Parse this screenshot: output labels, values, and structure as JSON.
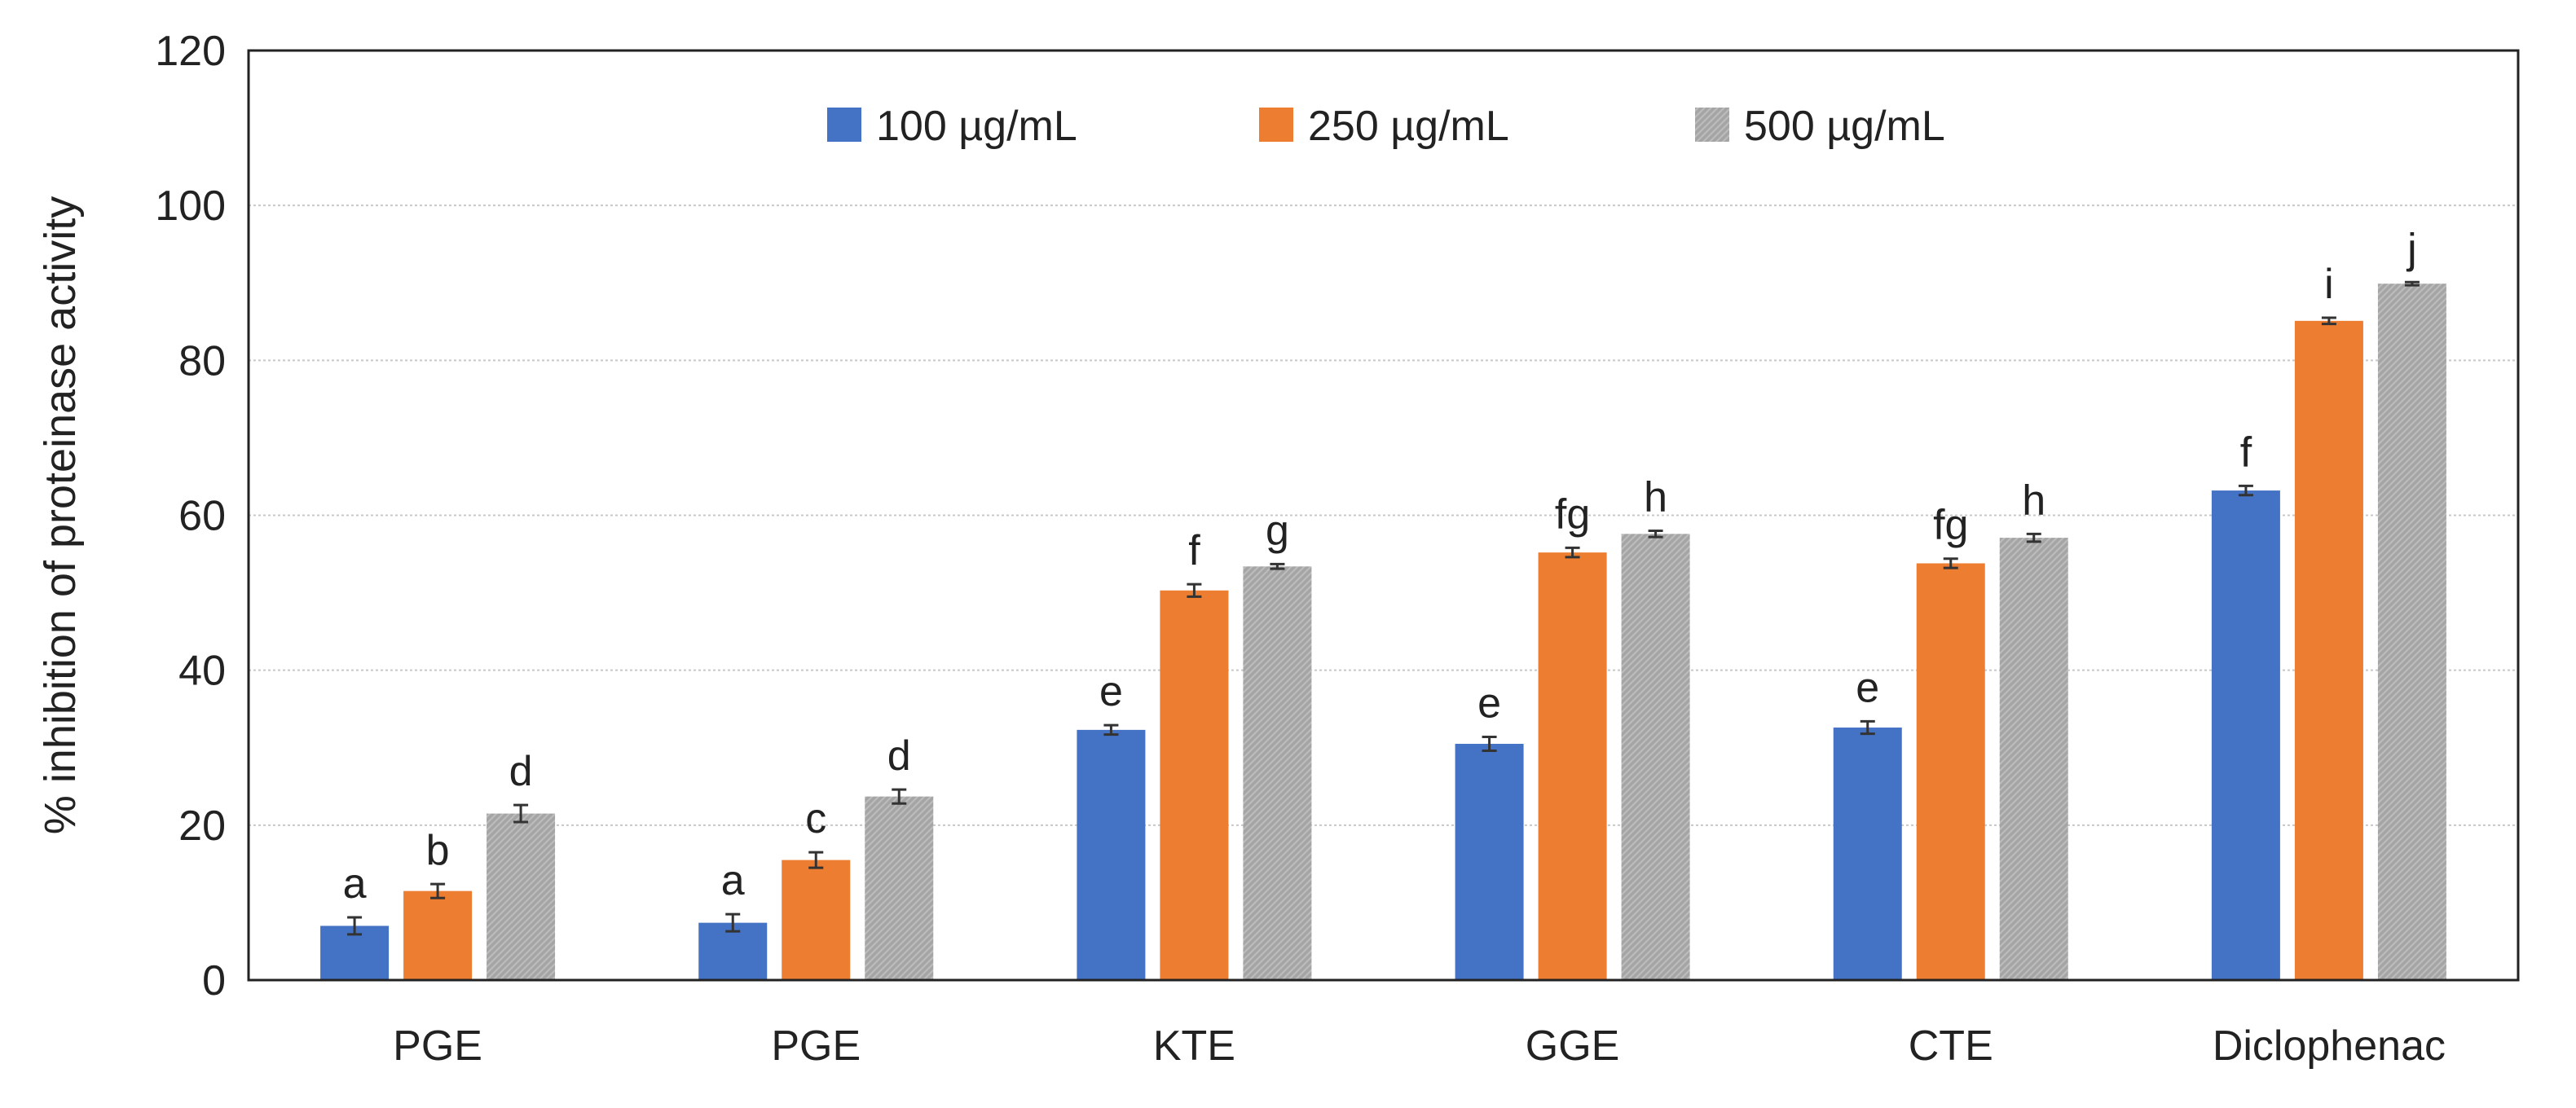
{
  "chart_data": {
    "type": "bar",
    "title": "",
    "xlabel": "",
    "ylabel": "% inhibition of proteinase activity",
    "ylim": [
      0,
      120
    ],
    "yticks": [
      0,
      20,
      40,
      60,
      80,
      100,
      120
    ],
    "grid": true,
    "legend_position": "top-center",
    "categories": [
      "PGE",
      "PGE",
      "KTE",
      "GGE",
      "CTE",
      "Diclophenac"
    ],
    "series": [
      {
        "name": "100 µg/mL",
        "color": "#4472C4",
        "values": [
          7,
          7.4,
          32.3,
          30.5,
          32.6,
          63.2
        ],
        "errors": [
          1.1,
          1.1,
          0.6,
          0.9,
          0.8,
          0.6
        ],
        "letters": [
          "a",
          "a",
          "e",
          "e",
          "e",
          "f"
        ]
      },
      {
        "name": "250 µg/mL",
        "color": "#ED7D31",
        "values": [
          11.5,
          15.5,
          50.3,
          55.2,
          53.8,
          85.1
        ],
        "errors": [
          0.9,
          1.0,
          0.8,
          0.6,
          0.6,
          0.4
        ],
        "letters": [
          "b",
          "c",
          "f",
          "fg",
          "fg",
          "i"
        ]
      },
      {
        "name": "500 µg/mL",
        "color": "#A5A5A5",
        "values": [
          21.5,
          23.7,
          53.4,
          57.6,
          57.1,
          89.9
        ],
        "errors": [
          1.1,
          0.9,
          0.3,
          0.4,
          0.5,
          0.2
        ],
        "letters": [
          "d",
          "d",
          "g",
          "h",
          "h",
          "j"
        ]
      }
    ]
  }
}
